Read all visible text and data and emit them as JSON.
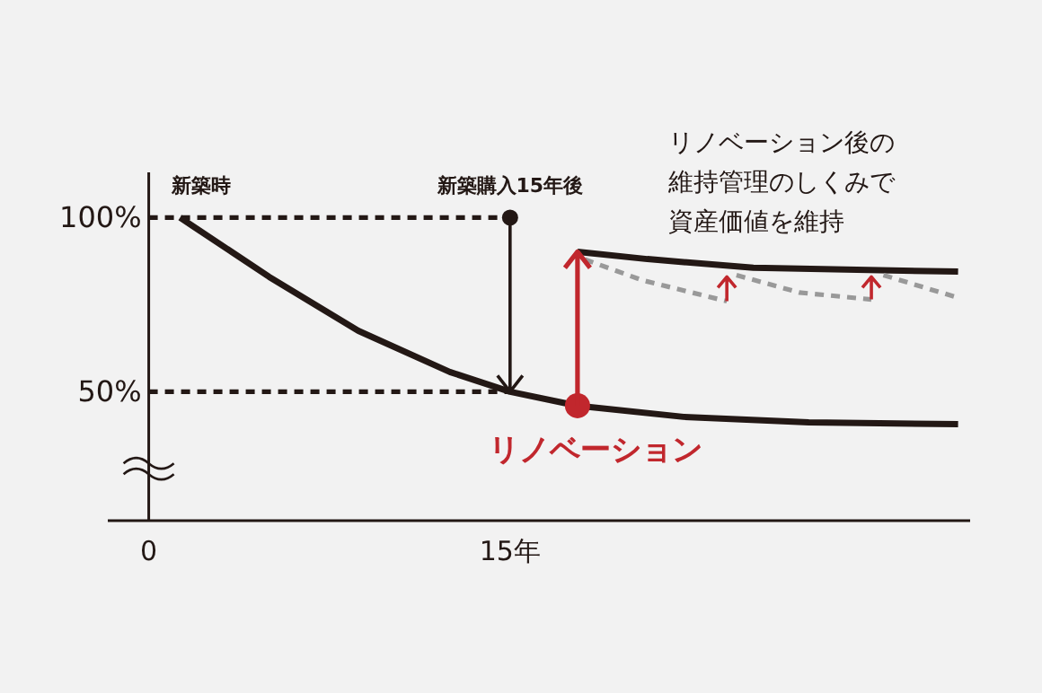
{
  "chart_data": {
    "type": "line",
    "xlim": [
      -1.7,
      34.1
    ],
    "ylim": [
      13,
      113
    ],
    "xticks": [
      {
        "value": 0,
        "label": "0"
      },
      {
        "value": 15,
        "label": "15年"
      }
    ],
    "yticks": [
      {
        "value": 100,
        "label": "100%"
      },
      {
        "value": 50,
        "label": "50%"
      }
    ],
    "grid": false,
    "series": [
      {
        "color": "#231815",
        "line_style": "dashed",
        "x": [
          0,
          15
        ],
        "values": [
          100,
          100
        ]
      },
      {
        "color": "#231815",
        "line_style": "dashed",
        "x": [
          0,
          15
        ],
        "values": [
          50,
          50
        ]
      },
      {
        "color": "#231815",
        "x": [
          1.3,
          5,
          8.7,
          12.5,
          15,
          17.8,
          22.2,
          27.4,
          33.6
        ],
        "values": [
          100,
          83,
          67.5,
          55.7,
          50,
          46,
          42.8,
          41.2,
          40.7
        ]
      },
      {
        "color": "#231815",
        "x": [
          17.8,
          20.7,
          25.1,
          33.6
        ],
        "values": [
          90.2,
          88.1,
          85.6,
          84.5
        ]
      },
      {
        "color": "#999999",
        "line_style": "dashed",
        "x": [
          18.1,
          20.5,
          24
        ],
        "values": [
          88,
          82,
          76
        ]
      },
      {
        "color": "#999999",
        "line_style": "dashed",
        "x": [
          24.4,
          27,
          30
        ],
        "values": [
          83.5,
          78.5,
          76.5
        ]
      },
      {
        "color": "#999999",
        "line_style": "dashed",
        "x": [
          30.5,
          33.6
        ],
        "values": [
          83.5,
          77
        ]
      },
      {
        "type": "scatter",
        "color": "#231815",
        "x": [
          15
        ],
        "values": [
          100
        ]
      },
      {
        "type": "scatter",
        "color": "#c1272d",
        "x": [
          17.8
        ],
        "values": [
          46
        ]
      }
    ],
    "annotations": [
      {
        "text": "新築時",
        "x": 1.3,
        "y": 100
      },
      {
        "text": "新築購入15年後",
        "x": 15,
        "y": 100
      },
      {
        "text": "リノベーション",
        "x": 17.8,
        "y": 46
      },
      "リノベーション後の",
      "維持管理のしくみで",
      "資産価値を維持"
    ]
  }
}
